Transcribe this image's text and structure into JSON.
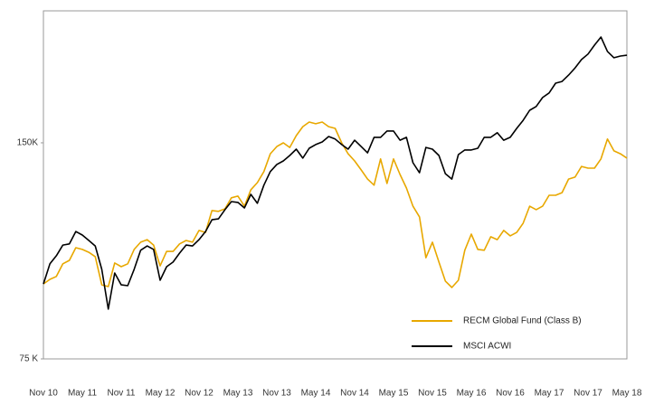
{
  "chart_data": {
    "type": "line",
    "categories": [
      "Nov 10",
      null,
      null,
      null,
      null,
      null,
      "May 11",
      null,
      null,
      null,
      null,
      null,
      "Nov 11",
      null,
      null,
      null,
      null,
      null,
      "May 12",
      null,
      null,
      null,
      null,
      null,
      "Nov 12",
      null,
      null,
      null,
      null,
      null,
      "May 13",
      null,
      null,
      null,
      null,
      null,
      "Nov 13",
      null,
      null,
      null,
      null,
      null,
      "May 14",
      null,
      null,
      null,
      null,
      null,
      "Nov 14",
      null,
      null,
      null,
      null,
      null,
      "May 15",
      null,
      null,
      null,
      null,
      null,
      "Nov 15",
      null,
      null,
      null,
      null,
      null,
      "May 16",
      null,
      null,
      null,
      null,
      null,
      "Nov 16",
      null,
      null,
      null,
      null,
      null,
      "May 17",
      null,
      null,
      null,
      null,
      null,
      "Nov 17",
      null,
      null,
      null,
      null,
      null,
      "May 18"
    ],
    "series": [
      {
        "name": "RECM Global Fund (Class B)",
        "color": "#e8a800",
        "values": [
          101.0,
          102.6,
          103.6,
          108.0,
          109.2,
          113.6,
          113.0,
          112.0,
          110.5,
          100.7,
          100.1,
          108.3,
          107.0,
          108.0,
          113.0,
          115.5,
          116.4,
          114.5,
          107.3,
          112.3,
          112.3,
          114.9,
          116.1,
          115.5,
          119.6,
          118.9,
          126.5,
          126.2,
          127.1,
          130.9,
          131.5,
          128.0,
          133.7,
          136.2,
          140.0,
          146.2,
          148.7,
          150.0,
          148.4,
          152.5,
          155.6,
          157.2,
          156.6,
          157.2,
          155.6,
          155.0,
          150.0,
          146.2,
          143.7,
          140.6,
          137.4,
          135.3,
          144.4,
          135.9,
          144.4,
          139.0,
          134.3,
          128.0,
          124.3,
          110.1,
          115.5,
          108.6,
          102.0,
          99.8,
          102.3,
          112.7,
          118.3,
          113.0,
          112.7,
          117.4,
          116.4,
          119.6,
          117.7,
          118.9,
          122.1,
          128.0,
          126.8,
          128.0,
          131.8,
          131.8,
          132.7,
          137.4,
          138.1,
          141.8,
          141.2,
          141.2,
          144.4,
          151.3,
          147.2,
          146.2,
          144.7
        ]
      },
      {
        "name": "MSCI ACWI",
        "color": "#000000",
        "values": [
          101.0,
          108.0,
          110.8,
          114.5,
          114.9,
          119.2,
          118.0,
          116.1,
          114.2,
          106.1,
          92.3,
          104.8,
          100.7,
          100.4,
          106.1,
          112.7,
          114.2,
          113.0,
          102.3,
          107.0,
          108.6,
          111.7,
          114.5,
          114.2,
          116.4,
          119.2,
          123.3,
          123.6,
          126.8,
          129.6,
          129.3,
          127.4,
          132.1,
          129.0,
          135.3,
          140.0,
          142.5,
          143.7,
          145.6,
          147.8,
          144.7,
          148.1,
          149.4,
          150.3,
          152.2,
          151.3,
          149.4,
          147.8,
          150.9,
          148.7,
          146.5,
          151.9,
          151.9,
          154.1,
          154.1,
          150.9,
          151.9,
          143.1,
          139.6,
          148.4,
          147.8,
          145.6,
          139.3,
          137.4,
          145.9,
          147.5,
          147.5,
          148.1,
          151.9,
          151.9,
          153.5,
          150.9,
          151.9,
          155.0,
          157.8,
          161.3,
          162.6,
          165.7,
          167.3,
          170.7,
          171.3,
          173.5,
          176.0,
          178.9,
          180.8,
          183.9,
          186.7,
          181.7,
          179.5,
          180.1,
          180.4
        ]
      }
    ],
    "ylim": [
      75,
      195.8
    ],
    "yticks": [
      {
        "value": 75,
        "label": "75 K"
      },
      {
        "value": 150,
        "label": "150K"
      }
    ],
    "legend": "lower right"
  }
}
